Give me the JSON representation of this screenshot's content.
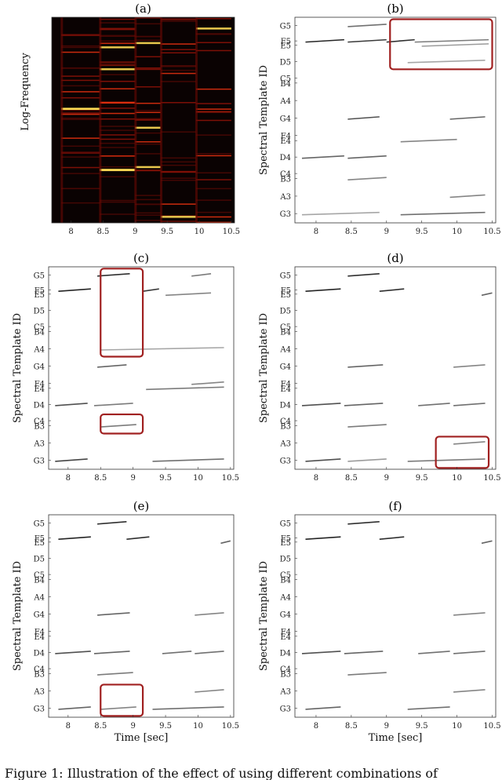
{
  "caption": "Figure 1: Illustration of the effect of using different combinations of",
  "spectrogram_ylabel": "Log-Frequency",
  "template_ylabel": "Spectral Template ID",
  "xlabel": "Time [sec]",
  "chart_data": [
    {
      "label": "(a)",
      "type": "heatmap",
      "ylabel": "Log-Frequency",
      "x_ticks": [
        "8",
        "8.5",
        "9",
        "9.5",
        "10",
        "10.5"
      ],
      "xlim": [
        7.7,
        10.55
      ],
      "colormap": "black-red-yellow"
    },
    {
      "label": "(b)",
      "type": "heatmap",
      "ylabel": "Spectral Template ID",
      "y_ticks": [
        "G5",
        "F5",
        "E5",
        "D5",
        "C5",
        "B4",
        "A4",
        "G4",
        "F4",
        "E4",
        "D4",
        "C4",
        "B3",
        "A3",
        "G3"
      ],
      "x_ticks": [
        "8",
        "8.5",
        "9",
        "9.5",
        "10",
        "10.5"
      ],
      "xlim": [
        7.7,
        10.55
      ],
      "segments": [
        {
          "pitch": "F5",
          "t0": 7.85,
          "t1": 8.4,
          "v": 0.9
        },
        {
          "pitch": "F5",
          "t0": 8.45,
          "t1": 9.0,
          "v": 0.8
        },
        {
          "pitch": "F5",
          "t0": 9.0,
          "t1": 9.4,
          "v": 0.85
        },
        {
          "pitch": "F5",
          "t0": 9.4,
          "t1": 10.45,
          "v": 0.5
        },
        {
          "pitch": "G5",
          "t0": 8.45,
          "t1": 9.0,
          "v": 0.55
        },
        {
          "pitch": "E5",
          "t0": 9.5,
          "t1": 10.45,
          "v": 0.35
        },
        {
          "pitch": "D5",
          "t0": 9.3,
          "t1": 10.4,
          "v": 0.3
        },
        {
          "pitch": "G4",
          "t0": 8.45,
          "t1": 8.9,
          "v": 0.7
        },
        {
          "pitch": "G4",
          "t0": 9.9,
          "t1": 10.4,
          "v": 0.6
        },
        {
          "pitch": "D4",
          "t0": 7.8,
          "t1": 8.4,
          "v": 0.6
        },
        {
          "pitch": "D4",
          "t0": 8.45,
          "t1": 9.0,
          "v": 0.6
        },
        {
          "pitch": "E4",
          "t0": 9.2,
          "t1": 10.0,
          "v": 0.45
        },
        {
          "pitch": "B3",
          "t0": 8.45,
          "t1": 9.0,
          "v": 0.45
        },
        {
          "pitch": "A3",
          "t0": 9.9,
          "t1": 10.4,
          "v": 0.45
        },
        {
          "pitch": "G3",
          "t0": 7.8,
          "t1": 8.9,
          "v": 0.3
        },
        {
          "pitch": "G3",
          "t0": 9.2,
          "t1": 10.4,
          "v": 0.55
        }
      ],
      "boxes": [
        {
          "t0": 9.05,
          "t1": 10.5,
          "p0": "D5",
          "p1": "G5"
        }
      ]
    },
    {
      "label": "(c)",
      "type": "heatmap",
      "ylabel": "Spectral Template ID",
      "y_ticks": [
        "G5",
        "F5",
        "E5",
        "D5",
        "C5",
        "B4",
        "A4",
        "G4",
        "F4",
        "E4",
        "D4",
        "C4",
        "B3",
        "A3",
        "G3"
      ],
      "x_ticks": [
        "8",
        "8.5",
        "9",
        "9.5",
        "10",
        "10.5"
      ],
      "xlim": [
        7.7,
        10.55
      ],
      "segments": [
        {
          "pitch": "G5",
          "t0": 8.45,
          "t1": 8.95,
          "v": 0.85
        },
        {
          "pitch": "G5",
          "t0": 9.9,
          "t1": 10.2,
          "v": 0.5
        },
        {
          "pitch": "F5",
          "t0": 7.85,
          "t1": 8.35,
          "v": 0.9
        },
        {
          "pitch": "F5",
          "t0": 9.15,
          "t1": 9.4,
          "v": 0.8
        },
        {
          "pitch": "E5",
          "t0": 9.5,
          "t1": 10.2,
          "v": 0.45
        },
        {
          "pitch": "A4",
          "t0": 8.5,
          "t1": 10.4,
          "v": 0.3
        },
        {
          "pitch": "G4",
          "t0": 8.45,
          "t1": 8.9,
          "v": 0.6
        },
        {
          "pitch": "F4",
          "t0": 9.9,
          "t1": 10.4,
          "v": 0.45
        },
        {
          "pitch": "D4",
          "t0": 7.8,
          "t1": 8.3,
          "v": 0.7
        },
        {
          "pitch": "D4",
          "t0": 8.4,
          "t1": 9.0,
          "v": 0.5
        },
        {
          "pitch": "E4",
          "t0": 9.2,
          "t1": 10.4,
          "v": 0.5
        },
        {
          "pitch": "B3",
          "t0": 8.5,
          "t1": 9.05,
          "v": 0.5
        },
        {
          "pitch": "G3",
          "t0": 7.8,
          "t1": 8.3,
          "v": 0.75
        },
        {
          "pitch": "G3",
          "t0": 9.3,
          "t1": 10.4,
          "v": 0.55
        }
      ],
      "boxes": [
        {
          "t0": 8.5,
          "t1": 9.15,
          "p0": "A4",
          "p1": "G5"
        },
        {
          "t0": 8.5,
          "t1": 9.15,
          "p0": "B3",
          "p1": "C4"
        }
      ]
    },
    {
      "label": "(d)",
      "type": "heatmap",
      "ylabel": "Spectral Template ID",
      "y_ticks": [
        "G5",
        "F5",
        "E5",
        "D5",
        "C5",
        "B4",
        "A4",
        "G4",
        "F4",
        "E4",
        "D4",
        "C4",
        "B3",
        "A3",
        "G3"
      ],
      "x_ticks": [
        "8",
        "8.5",
        "9",
        "9.5",
        "10",
        "10.5"
      ],
      "xlim": [
        7.7,
        10.55
      ],
      "segments": [
        {
          "pitch": "G5",
          "t0": 8.45,
          "t1": 8.9,
          "v": 0.85
        },
        {
          "pitch": "F5",
          "t0": 7.85,
          "t1": 8.35,
          "v": 0.9
        },
        {
          "pitch": "F5",
          "t0": 8.9,
          "t1": 9.25,
          "v": 0.85
        },
        {
          "pitch": "E5",
          "t0": 10.35,
          "t1": 10.5,
          "v": 0.6
        },
        {
          "pitch": "G4",
          "t0": 8.45,
          "t1": 8.95,
          "v": 0.6
        },
        {
          "pitch": "G4",
          "t0": 9.95,
          "t1": 10.4,
          "v": 0.45
        },
        {
          "pitch": "D4",
          "t0": 7.8,
          "t1": 8.35,
          "v": 0.7
        },
        {
          "pitch": "D4",
          "t0": 8.4,
          "t1": 8.95,
          "v": 0.6
        },
        {
          "pitch": "D4",
          "t0": 9.45,
          "t1": 9.9,
          "v": 0.55
        },
        {
          "pitch": "D4",
          "t0": 9.95,
          "t1": 10.4,
          "v": 0.55
        },
        {
          "pitch": "B3",
          "t0": 8.45,
          "t1": 9.0,
          "v": 0.5
        },
        {
          "pitch": "A3",
          "t0": 9.95,
          "t1": 10.4,
          "v": 0.45
        },
        {
          "pitch": "G3",
          "t0": 7.85,
          "t1": 8.35,
          "v": 0.7
        },
        {
          "pitch": "G3",
          "t0": 8.45,
          "t1": 9.0,
          "v": 0.35
        },
        {
          "pitch": "G3",
          "t0": 9.3,
          "t1": 10.4,
          "v": 0.5
        }
      ],
      "boxes": [
        {
          "t0": 9.7,
          "t1": 10.45,
          "p0": "G3",
          "p1": "A3"
        }
      ]
    },
    {
      "label": "(e)",
      "type": "heatmap",
      "ylabel": "Spectral Template ID",
      "y_ticks": [
        "G5",
        "F5",
        "E5",
        "D5",
        "C5",
        "B4",
        "A4",
        "G4",
        "F4",
        "E4",
        "D4",
        "C4",
        "B3",
        "A3",
        "G3"
      ],
      "x_ticks": [
        "8",
        "8.5",
        "9",
        "9.5",
        "10",
        "10.5"
      ],
      "xlim": [
        7.7,
        10.55
      ],
      "xlabel": "Time [sec]",
      "segments": [
        {
          "pitch": "G5",
          "t0": 8.45,
          "t1": 8.9,
          "v": 0.85
        },
        {
          "pitch": "F5",
          "t0": 7.85,
          "t1": 8.35,
          "v": 0.9
        },
        {
          "pitch": "F5",
          "t0": 8.9,
          "t1": 9.25,
          "v": 0.85
        },
        {
          "pitch": "E5",
          "t0": 10.35,
          "t1": 10.5,
          "v": 0.6
        },
        {
          "pitch": "G4",
          "t0": 8.45,
          "t1": 8.95,
          "v": 0.6
        },
        {
          "pitch": "G4",
          "t0": 9.95,
          "t1": 10.4,
          "v": 0.45
        },
        {
          "pitch": "D4",
          "t0": 7.8,
          "t1": 8.35,
          "v": 0.7
        },
        {
          "pitch": "D4",
          "t0": 8.4,
          "t1": 8.95,
          "v": 0.6
        },
        {
          "pitch": "D4",
          "t0": 9.45,
          "t1": 9.9,
          "v": 0.55
        },
        {
          "pitch": "D4",
          "t0": 9.95,
          "t1": 10.4,
          "v": 0.55
        },
        {
          "pitch": "B3",
          "t0": 8.45,
          "t1": 9.0,
          "v": 0.5
        },
        {
          "pitch": "A3",
          "t0": 9.95,
          "t1": 10.4,
          "v": 0.45
        },
        {
          "pitch": "G3",
          "t0": 7.85,
          "t1": 8.35,
          "v": 0.6
        },
        {
          "pitch": "G3",
          "t0": 8.5,
          "t1": 9.05,
          "v": 0.45
        },
        {
          "pitch": "G3",
          "t0": 9.3,
          "t1": 10.4,
          "v": 0.55
        }
      ],
      "boxes": [
        {
          "t0": 8.5,
          "t1": 9.15,
          "p0": "G3",
          "p1": "A3"
        }
      ]
    },
    {
      "label": "(f)",
      "type": "heatmap",
      "ylabel": "Spectral Template ID",
      "y_ticks": [
        "G5",
        "F5",
        "E5",
        "D5",
        "C5",
        "B4",
        "A4",
        "G4",
        "F4",
        "E4",
        "D4",
        "C4",
        "B3",
        "A3",
        "G3"
      ],
      "x_ticks": [
        "8",
        "8.5",
        "9",
        "9.5",
        "10",
        "10.5"
      ],
      "xlim": [
        7.7,
        10.55
      ],
      "xlabel": "Time [sec]",
      "segments": [
        {
          "pitch": "G5",
          "t0": 8.45,
          "t1": 8.9,
          "v": 0.85
        },
        {
          "pitch": "F5",
          "t0": 7.85,
          "t1": 8.35,
          "v": 0.9
        },
        {
          "pitch": "F5",
          "t0": 8.9,
          "t1": 9.25,
          "v": 0.85
        },
        {
          "pitch": "E5",
          "t0": 10.35,
          "t1": 10.5,
          "v": 0.6
        },
        {
          "pitch": "G4",
          "t0": 9.95,
          "t1": 10.4,
          "v": 0.45
        },
        {
          "pitch": "D4",
          "t0": 7.8,
          "t1": 8.35,
          "v": 0.7
        },
        {
          "pitch": "D4",
          "t0": 8.4,
          "t1": 8.95,
          "v": 0.6
        },
        {
          "pitch": "D4",
          "t0": 9.45,
          "t1": 9.9,
          "v": 0.55
        },
        {
          "pitch": "D4",
          "t0": 9.95,
          "t1": 10.4,
          "v": 0.55
        },
        {
          "pitch": "B3",
          "t0": 8.45,
          "t1": 9.0,
          "v": 0.5
        },
        {
          "pitch": "A3",
          "t0": 9.95,
          "t1": 10.4,
          "v": 0.45
        },
        {
          "pitch": "G3",
          "t0": 7.85,
          "t1": 8.35,
          "v": 0.6
        },
        {
          "pitch": "G3",
          "t0": 9.3,
          "t1": 9.9,
          "v": 0.55
        }
      ],
      "boxes": []
    }
  ],
  "colors": {
    "box": "#a02020",
    "ink": "#111111"
  }
}
